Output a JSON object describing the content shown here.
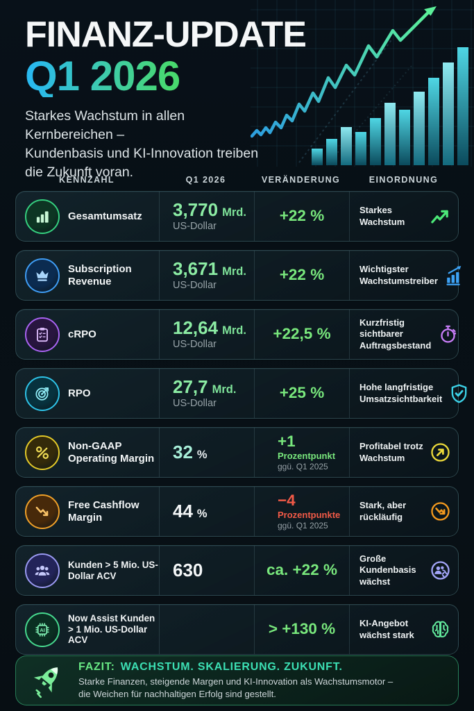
{
  "header": {
    "title_line1": "FINANZ-UPDATE",
    "title_line2": "Q1 2026",
    "subtitle": "Starkes Wachstum in allen Kernbereichen –\nKundenbasis und KI-Innovation treiben\ndie Zukunft voran."
  },
  "colors": {
    "title_gradient": [
      "#29b9ef",
      "#48d96e"
    ],
    "positive_green": "#79e87d",
    "value_green": "#8ceca4",
    "negative_red": "#f25a47",
    "fazit_teal": "#3ce0b4"
  },
  "table": {
    "columns": [
      "KENNZAHL",
      "Q1 2026",
      "VERÄNDERUNG",
      "EINORDNUNG"
    ],
    "rows": [
      {
        "icon": "bar-chart-icon",
        "metric": "Gesamtumsatz",
        "value_main": "3,770",
        "value_unit": "Mrd.",
        "value_sub": "US-Dollar",
        "value_style": "green",
        "change_main": "+22 %",
        "change_sub1": "",
        "change_sub2": "",
        "change_style": "green",
        "assessment": "Starkes Wachstum",
        "assessment_icon": "trend-up-arrow-icon",
        "colors": {
          "ring": "#35d07f",
          "glyph": "#c9f7d6",
          "bg": "#0d3523",
          "assess": "#4ce878"
        }
      },
      {
        "icon": "crown-icon",
        "metric": "Subscription Revenue",
        "value_main": "3,671",
        "value_unit": "Mrd.",
        "value_sub": "US-Dollar",
        "value_style": "green",
        "change_main": "+22 %",
        "change_sub1": "",
        "change_sub2": "",
        "change_style": "green",
        "assessment": "Wichtigster Wachstumstreiber",
        "assessment_icon": "bar-growth-icon",
        "colors": {
          "ring": "#3f9df5",
          "glyph": "#a9d6fb",
          "bg": "#0b2b50",
          "assess": "#3da2f5"
        }
      },
      {
        "icon": "clipboard-check-icon",
        "metric": "cRPO",
        "value_main": "12,64",
        "value_unit": "Mrd.",
        "value_sub": "US-Dollar",
        "value_style": "green",
        "change_main": "+22,5 %",
        "change_sub1": "",
        "change_sub2": "",
        "change_style": "green",
        "assessment": "Kurzfristig sichtbarer Auftragsbestand",
        "assessment_icon": "stopwatch-icon",
        "colors": {
          "ring": "#a963f2",
          "glyph": "#dcbcfb",
          "bg": "#28153f",
          "assess": "#c87df8"
        }
      },
      {
        "icon": "target-icon",
        "metric": "RPO",
        "value_main": "27,7",
        "value_unit": "Mrd.",
        "value_sub": "US-Dollar",
        "value_style": "green",
        "change_main": "+25 %",
        "change_sub1": "",
        "change_sub2": "",
        "change_style": "green",
        "assessment": "Hohe langfristige Umsatzsichtbarkeit",
        "assessment_icon": "shield-check-icon",
        "colors": {
          "ring": "#2ec3e8",
          "glyph": "#8feaf4",
          "bg": "#07323e",
          "assess": "#3cd2e8"
        }
      },
      {
        "icon": "percent-icon",
        "metric": "Non-GAAP Operating Margin",
        "value_main": "32",
        "value_unit": "%",
        "value_sub": "",
        "value_style": "mint",
        "change_main": "+1",
        "change_sub1": "Prozentpunkt",
        "change_sub2": "ggü. Q1 2025",
        "change_style": "green",
        "assessment": "Profitabel trotz Wachstum",
        "assessment_icon": "arrow-up-right-circle-icon",
        "colors": {
          "ring": "#e3c928",
          "glyph": "#f2de56",
          "bg": "#342a0a",
          "assess": "#ecd93a"
        }
      },
      {
        "icon": "trend-down-icon",
        "metric": "Free Cashflow Margin",
        "value_main": "44",
        "value_unit": "%",
        "value_sub": "",
        "value_style": "white",
        "change_main": "−4",
        "change_sub1": "Prozentpunkte",
        "change_sub2": "ggü. Q1 2025",
        "change_style": "red",
        "assessment": "Stark, aber rückläufig",
        "assessment_icon": "arrow-down-circle-icon",
        "colors": {
          "ring": "#f0a028",
          "glyph": "#fbc468",
          "bg": "#47290a",
          "assess": "#f59a1e"
        }
      },
      {
        "icon": "users-icon",
        "metric": "Kunden > 5 Mio. US-Dollar ACV",
        "value_main": "630",
        "value_unit": "",
        "value_sub": "",
        "value_style": "white",
        "change_main": "ca. +22 %",
        "change_sub1": "",
        "change_sub2": "",
        "change_style": "green",
        "assessment": "Große Kundenbasis wächst",
        "assessment_icon": "user-plus-circle-icon",
        "colors": {
          "ring": "#9a99f2",
          "glyph": "#c5c8fa",
          "bg": "#232459",
          "assess": "#a3a4f8"
        }
      },
      {
        "icon": "ai-chip-icon",
        "metric": "Now Assist Kunden > 1 Mio. US-Dollar ACV",
        "value_main": "",
        "value_unit": "",
        "value_sub": "",
        "value_style": "white",
        "change_main": "> +130 %",
        "change_sub1": "",
        "change_sub2": "",
        "change_style": "green",
        "assessment": "KI-Angebot wächst stark",
        "assessment_icon": "brain-circuit-icon",
        "colors": {
          "ring": "#46d98e",
          "glyph": "#7debb0",
          "bg": "#0a2f22",
          "assess": "#62e89c"
        }
      }
    ]
  },
  "footer": {
    "label": "FAZIT:",
    "headline": "WACHSTUM. SKALIERUNG. ZUKUNFT.",
    "text": "Starke Finanzen, steigende Margen und KI-Innovation als Wachstumsmotor –\ndie Weichen für nachhaltigen Erfolg sind gestellt."
  }
}
